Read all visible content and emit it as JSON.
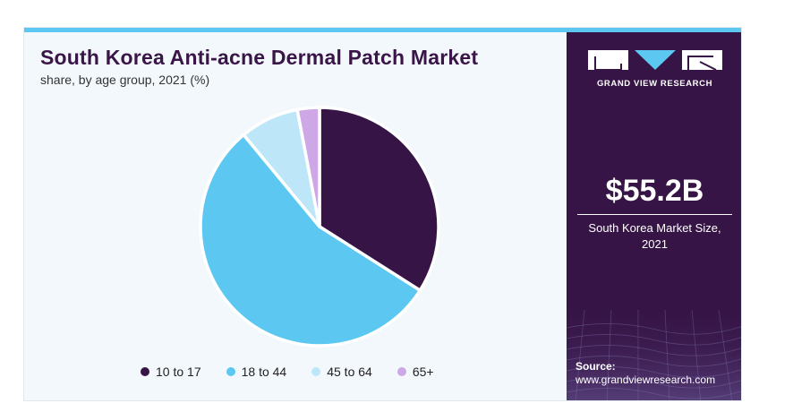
{
  "chart_data": {
    "type": "pie",
    "title": "South Korea Anti-acne Dermal Patch Market",
    "subtitle": "share, by age group, 2021 (%)",
    "categories": [
      "10 to 17",
      "18 to 44",
      "45 to 64",
      "65+"
    ],
    "values": [
      34,
      55,
      8,
      3
    ],
    "colors": [
      "#361446",
      "#5cc8f2",
      "#bde7f8",
      "#cda7e6"
    ],
    "start_angle_deg": 0,
    "direction": "clockwise",
    "legend_position": "bottom"
  },
  "sidebar": {
    "brand": "GRAND VIEW RESEARCH",
    "market_value": "$55.2B",
    "market_label": "South Korea Market Size, 2021",
    "source_title": "Source:",
    "source_url": "www.grandviewresearch.com",
    "background_color": "#361446"
  }
}
